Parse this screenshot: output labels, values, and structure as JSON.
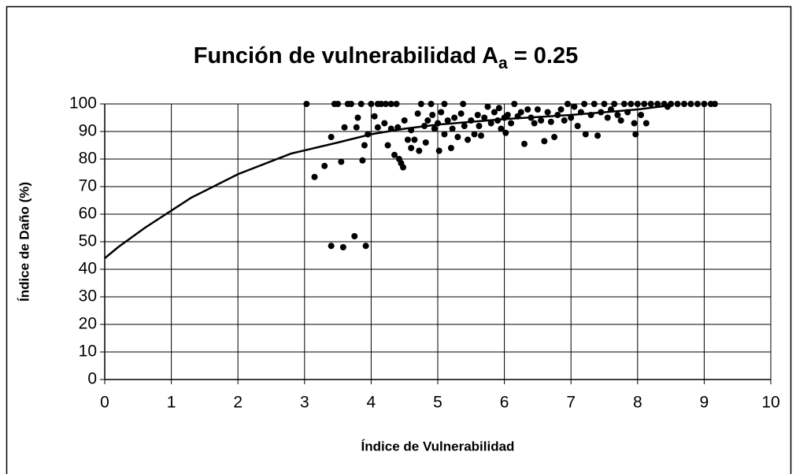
{
  "chart_data": {
    "type": "scatter",
    "title": [
      "Función de vulnerabilidad A",
      "a",
      " = 0.25"
    ],
    "xlabel": "Índice de Vulnerabilidad",
    "ylabel": "Índice de Daño (%)",
    "xlim": [
      0,
      10
    ],
    "ylim": [
      0,
      100
    ],
    "xticks": [
      0,
      1,
      2,
      3,
      4,
      5,
      6,
      7,
      8,
      9,
      10
    ],
    "yticks": [
      0,
      10,
      20,
      30,
      40,
      50,
      60,
      70,
      80,
      90,
      100
    ],
    "grid": true,
    "series": [
      {
        "type": "scatter",
        "color": "#000000",
        "x": [
          3.03,
          3.15,
          3.3,
          3.4,
          3.45,
          3.5,
          3.4,
          3.55,
          3.6,
          3.58,
          3.65,
          3.7,
          3.75,
          3.78,
          3.8,
          3.85,
          3.87,
          3.9,
          3.92,
          3.95,
          4.0,
          4.05,
          4.1,
          4.1,
          4.15,
          4.2,
          4.22,
          4.25,
          4.3,
          4.3,
          4.35,
          4.38,
          4.4,
          4.42,
          4.45,
          4.48,
          4.5,
          4.55,
          4.6,
          4.6,
          4.65,
          4.7,
          4.72,
          4.75,
          4.8,
          4.82,
          4.85,
          4.9,
          4.92,
          4.95,
          5.0,
          5.02,
          5.05,
          5.1,
          5.1,
          5.15,
          5.2,
          5.22,
          5.25,
          5.3,
          5.35,
          5.38,
          5.4,
          5.45,
          5.5,
          5.55,
          5.6,
          5.62,
          5.65,
          5.7,
          5.75,
          5.8,
          5.85,
          5.9,
          5.92,
          5.95,
          6.0,
          6.02,
          6.05,
          6.1,
          6.15,
          6.2,
          6.25,
          6.3,
          6.35,
          6.4,
          6.45,
          6.5,
          6.55,
          6.6,
          6.65,
          6.7,
          6.75,
          6.8,
          6.85,
          6.9,
          6.95,
          7.0,
          7.05,
          7.1,
          7.15,
          7.2,
          7.22,
          7.3,
          7.35,
          7.4,
          7.45,
          7.5,
          7.55,
          7.6,
          7.65,
          7.7,
          7.75,
          7.8,
          7.85,
          7.9,
          7.95,
          7.97,
          8.0,
          8.05,
          8.1,
          8.13,
          8.2,
          8.3,
          8.4,
          8.45,
          8.5,
          8.6,
          8.7,
          8.8,
          8.9,
          9.0,
          9.1,
          9.16
        ],
        "values": [
          100,
          73.5,
          77.5,
          88,
          100,
          100,
          48.5,
          79,
          91.5,
          48,
          100,
          100,
          52,
          91.5,
          95,
          100,
          79.5,
          85,
          48.5,
          89,
          100,
          95.5,
          100,
          91.5,
          100,
          93,
          100,
          85,
          100,
          91,
          81.5,
          100,
          91.5,
          80,
          78.5,
          77,
          94,
          87,
          90.5,
          84,
          87,
          96.5,
          83,
          100,
          92,
          86,
          94,
          100,
          96,
          91,
          93,
          83,
          97,
          100,
          89,
          94,
          84,
          91,
          95,
          88,
          96.5,
          100,
          92,
          87,
          94,
          89,
          96,
          92,
          88.5,
          95,
          99,
          93,
          97,
          94,
          98.5,
          91,
          95,
          89.5,
          96,
          93,
          100,
          95.5,
          97,
          85.5,
          98,
          95,
          93,
          98,
          94,
          86.5,
          97,
          93.5,
          88,
          96,
          98,
          94,
          100,
          95,
          99,
          92,
          97,
          100,
          89,
          96,
          100,
          88.5,
          97,
          100,
          95,
          98,
          100,
          96,
          94,
          100,
          97,
          100,
          93,
          89,
          100,
          96,
          100,
          93,
          100,
          100,
          100,
          99,
          100,
          100,
          100,
          100,
          100,
          100,
          100,
          100
        ]
      },
      {
        "type": "line",
        "color": "#000000",
        "x": [
          0,
          0.2,
          0.6,
          1.3,
          2,
          2.8,
          3.5,
          4,
          4.5,
          5,
          6,
          7,
          8,
          8.5
        ],
        "values": [
          44,
          48,
          55,
          66,
          74.5,
          82,
          86,
          89,
          91,
          92.5,
          94.5,
          96,
          98,
          99.5
        ]
      }
    ]
  }
}
